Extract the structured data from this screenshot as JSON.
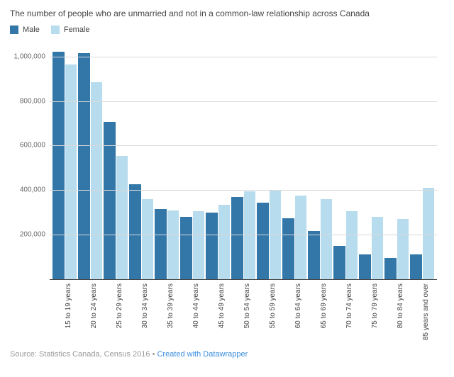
{
  "title": "The number of people who are unmarried and not in a common-law relationship across Canada",
  "legend": {
    "series1": {
      "label": "Male",
      "color": "#3377a8"
    },
    "series2": {
      "label": "Female",
      "color": "#b7dcee"
    }
  },
  "chart": {
    "type": "bar",
    "background_color": "#ffffff",
    "grid_color": "#d9d9d9",
    "baseline_color": "#444444",
    "ylim": [
      0,
      1050000
    ],
    "ytick_step": 200000,
    "yticks": [
      0,
      200000,
      400000,
      600000,
      800000,
      1000000
    ],
    "ytick_labels": [
      "",
      "200,000",
      "400,000",
      "600,000",
      "800,000",
      "1,000,000"
    ],
    "label_fontsize": 10,
    "title_fontsize": 12,
    "categories": [
      "15 to 19 years",
      "20 to 24 years",
      "25 to 29 years",
      "30 to 34 years",
      "35 to 39 years",
      "40 to 44 years",
      "45 to 49 years",
      "50 to 54 years",
      "55 to 59 years",
      "60 to 64 years",
      "65 to 69 years",
      "70 to 74 years",
      "75 to 79 years",
      "80 to 84 years",
      "85 years and over"
    ],
    "series": [
      {
        "name": "Male",
        "color": "#3377a8",
        "values": [
          1020000,
          1015000,
          705000,
          425000,
          315000,
          280000,
          300000,
          370000,
          345000,
          275000,
          215000,
          150000,
          110000,
          95000,
          110000
        ]
      },
      {
        "name": "Female",
        "color": "#b7dcee",
        "values": [
          965000,
          885000,
          555000,
          360000,
          310000,
          305000,
          335000,
          395000,
          400000,
          375000,
          360000,
          305000,
          280000,
          270000,
          410000
        ]
      }
    ],
    "bar_group_gap": 2,
    "bar_width_pct": 48
  },
  "source": {
    "prefix": "Source: Statistics Canada, Census 2016",
    "sep": " • ",
    "link_text": "Created with Datawrapper",
    "link_color": "#3b8ede"
  }
}
